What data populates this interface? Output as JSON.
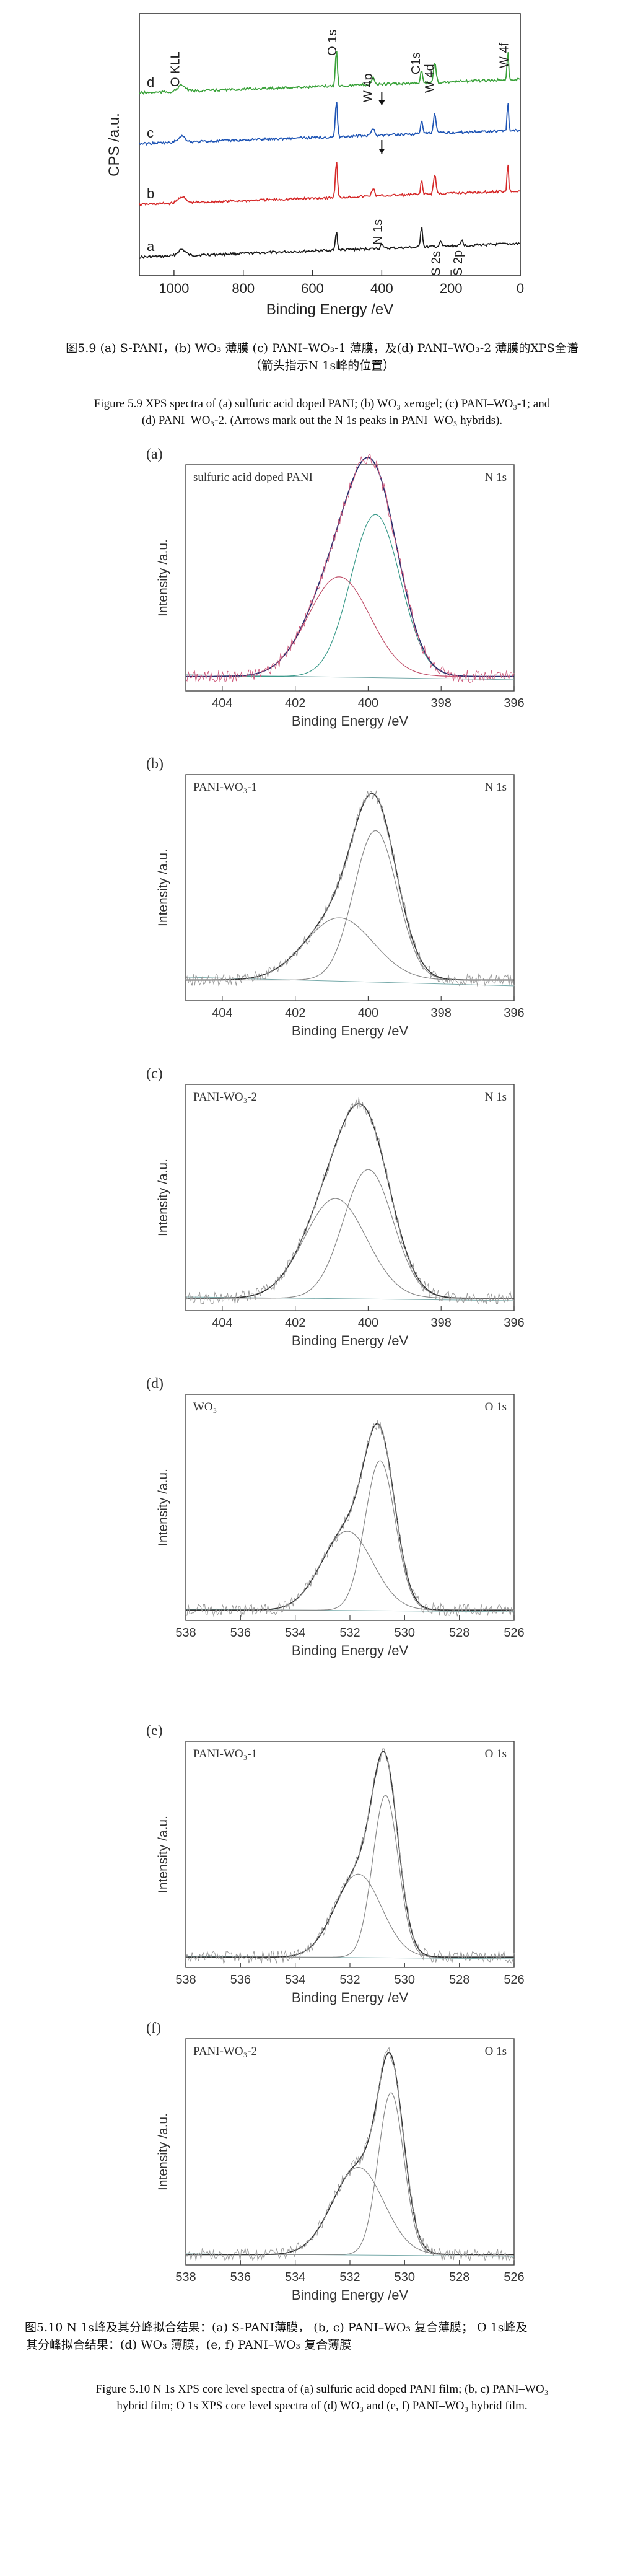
{
  "fig59": {
    "caption_cn_1": "图5.9  (a) S-PANI，(b) WO₃ 薄膜  (c) PANI–WO₃-1 薄膜，及(d) PANI–WO₃-2 薄膜的XPS全谱",
    "caption_cn_2": "（箭头指示N 1s峰的位置）",
    "caption_en_1": "Figure 5.9 XPS spectra of (a) sulfuric acid doped PANI; (b) WO₃ xerogel; (c) PANI–WO₃-1; and",
    "caption_en_2": "(d) PANI–WO₃-2. (Arrows mark out the N 1s peaks in PANI–WO₃ hybrids).",
    "chart": {
      "ylabel": "CPS /a.u.",
      "xlabel": "Binding Energy /eV",
      "xticks": [
        "1000",
        "800",
        "600",
        "400",
        "200",
        "0"
      ],
      "curve_labels": [
        "a",
        "b",
        "c",
        "d"
      ],
      "peak_labels": [
        "O KLL",
        "O 1s",
        "W 4p",
        "C1s",
        "W 4d",
        "W 4f",
        "N 1s",
        "S 2s",
        "S 2p"
      ],
      "colors": {
        "a": "#1a1a1a",
        "b": "#d62a2a",
        "c": "#1f55b5",
        "d": "#3aa23a"
      }
    }
  },
  "chart_data": [
    {
      "type": "line",
      "id": "a",
      "panel_label": "(a)",
      "tag_left": "sulfuric acid doped PANI",
      "tag_right": "N 1s",
      "ylabel": "Intensity /a.u.",
      "xlabel": "Binding Energy /eV",
      "xlim": [
        405,
        396
      ],
      "xticks": [
        404,
        402,
        400,
        398,
        396
      ],
      "peaks": [
        {
          "center": 399.8,
          "fwhm": 1.6,
          "height": 0.78
        },
        {
          "center": 400.8,
          "fwhm": 2.0,
          "height": 0.48
        }
      ],
      "baseline": 0.08
    },
    {
      "type": "line",
      "id": "b",
      "panel_label": "(b)",
      "tag_left": "PANI-WO₃-1",
      "tag_right": "N 1s",
      "ylabel": "Intensity /a.u.",
      "xlabel": "Binding Energy /eV",
      "xlim": [
        405,
        396
      ],
      "xticks": [
        404,
        402,
        400,
        398,
        396
      ],
      "peaks": [
        {
          "center": 399.8,
          "fwhm": 1.4,
          "height": 0.72
        },
        {
          "center": 400.8,
          "fwhm": 2.2,
          "height": 0.3
        }
      ],
      "baseline": 0.14
    },
    {
      "type": "line",
      "id": "c",
      "panel_label": "(c)",
      "tag_left": "PANI-WO₃-2",
      "tag_right": "N 1s",
      "ylabel": "Intensity /a.u.",
      "xlabel": "Binding Energy /eV",
      "xlim": [
        405,
        396
      ],
      "xticks": [
        404,
        402,
        400,
        398,
        396
      ],
      "peaks": [
        {
          "center": 400.0,
          "fwhm": 1.6,
          "height": 0.62
        },
        {
          "center": 400.9,
          "fwhm": 2.0,
          "height": 0.48
        }
      ],
      "baseline": 0.06
    },
    {
      "type": "line",
      "id": "d",
      "panel_label": "(d)",
      "tag_left": "WO₃",
      "tag_right": "O 1s",
      "ylabel": "Intensity /a.u.",
      "xlabel": "Binding Energy /eV",
      "xlim": [
        538,
        526
      ],
      "xticks": [
        538,
        536,
        534,
        532,
        530,
        528,
        526
      ],
      "peaks": [
        {
          "center": 530.9,
          "fwhm": 1.3,
          "height": 0.72
        },
        {
          "center": 532.1,
          "fwhm": 2.2,
          "height": 0.38
        }
      ],
      "baseline": 0.04
    },
    {
      "type": "line",
      "id": "e",
      "panel_label": "(e)",
      "tag_left": "PANI-WO₃-1",
      "tag_right": "O 1s",
      "ylabel": "Intensity /a.u.",
      "xlabel": "Binding Energy /eV",
      "xlim": [
        538,
        526
      ],
      "xticks": [
        538,
        536,
        534,
        532,
        530,
        528,
        526
      ],
      "peaks": [
        {
          "center": 530.7,
          "fwhm": 1.1,
          "height": 0.78
        },
        {
          "center": 531.7,
          "fwhm": 2.0,
          "height": 0.4
        }
      ],
      "baseline": 0.04
    },
    {
      "type": "line",
      "id": "f",
      "panel_label": "(f)",
      "tag_left": "PANI-WO₃-2",
      "tag_right": "O 1s",
      "ylabel": "Intensity /a.u.",
      "xlabel": "Binding Energy /eV",
      "xlim": [
        538,
        526
      ],
      "xticks": [
        538,
        536,
        534,
        532,
        530,
        528,
        526
      ],
      "peaks": [
        {
          "center": 530.5,
          "fwhm": 1.1,
          "height": 0.78
        },
        {
          "center": 531.7,
          "fwhm": 2.2,
          "height": 0.42
        }
      ],
      "baseline": 0.04
    }
  ],
  "fig510": {
    "caption_cn_1": "图5.10  N 1s峰及其分峰拟合结果：(a) S-PANI薄膜，  (b, c) PANI–WO₃ 复合薄膜；   O 1s峰及",
    "caption_cn_2": "其分峰拟合结果：(d) WO₃ 薄膜，(e, f) PANI–WO₃ 复合薄膜",
    "caption_en_1": "Figure 5.10 N 1s XPS core level spectra of (a) sulfuric acid doped PANI film; (b, c) PANI–WO₃",
    "caption_en_2": "hybrid film; O 1s XPS core level spectra of (d) WO₃ and (e, f) PANI–WO₃ hybrid film."
  }
}
